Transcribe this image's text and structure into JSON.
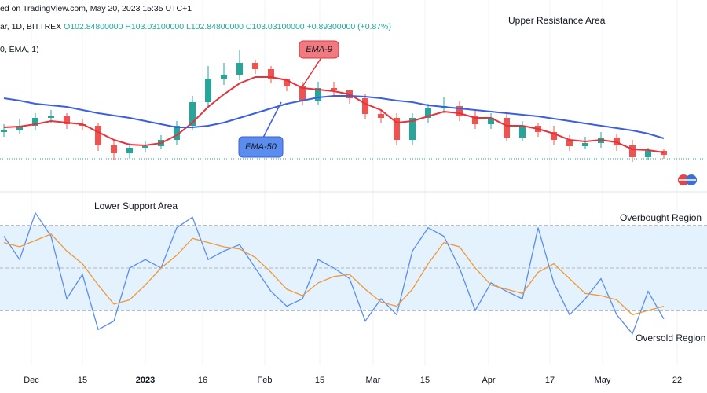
{
  "header": {
    "line1": "ed on TradingView.com, May 20, 2023 15:35 UTC+1",
    "line2_prefix": "ar, 1D, BITTREX ",
    "line2_values": "O102.84800000 H103.03100000 L102.84800000 C103.03100000 +0.89300000 (+0.87%)",
    "line3": "0, EMA, 1)"
  },
  "chart_data": [
    {
      "type": "candlestick",
      "annotations": {
        "upper": "Upper Resistance Area",
        "ema9": "EMA-9",
        "ema50": "EMA-50"
      },
      "ylim": [
        0,
        100
      ],
      "open": [
        26,
        27.5,
        30,
        35,
        36,
        31,
        30,
        17.5,
        12.5,
        16,
        17,
        21,
        30,
        45,
        60,
        62.5,
        70,
        66,
        60,
        55,
        46,
        54,
        52.5,
        47.5,
        37.5,
        35,
        21,
        35,
        41,
        42.5,
        36,
        31,
        35,
        22.5,
        30,
        26,
        21,
        17,
        19,
        22.5,
        17.5,
        10,
        14
      ],
      "high": [
        31,
        34,
        38,
        40,
        38,
        34,
        32,
        21,
        19,
        20,
        24,
        33,
        49,
        68,
        70,
        78,
        72,
        68,
        60,
        58,
        58,
        58,
        52,
        50,
        40,
        38,
        38,
        44,
        48,
        46,
        40,
        38,
        38,
        33,
        32,
        30,
        24,
        23,
        26,
        25,
        21,
        16,
        15
      ],
      "low": [
        23,
        25,
        27,
        32,
        28,
        27,
        14,
        8,
        9,
        13,
        15,
        18,
        27,
        42,
        56,
        59,
        63,
        57,
        52,
        43,
        43,
        49,
        44,
        34,
        32,
        18,
        18,
        32,
        38,
        33,
        28,
        28,
        20,
        20,
        23,
        18,
        14,
        15,
        16,
        14,
        7,
        8,
        9
      ],
      "close": [
        27.5,
        30,
        35,
        36,
        31,
        30,
        17.5,
        12.5,
        16,
        17,
        21,
        30,
        45,
        60,
        62.5,
        70,
        66,
        60,
        55,
        46,
        54,
        52.5,
        47.5,
        37.5,
        35,
        21,
        35,
        41,
        42.5,
        36,
        31,
        35,
        22.5,
        30,
        26,
        21,
        17,
        19,
        22.5,
        17.5,
        10,
        14,
        11.5
      ],
      "up_color": "#26a69a",
      "down_color": "#ef5350",
      "series": [
        {
          "name": "EMA-9",
          "color": "#e5323b",
          "values": [
            29,
            29.5,
            31,
            33,
            32,
            31,
            26,
            21,
            18,
            17.5,
            19,
            24,
            32,
            42,
            50,
            57,
            61,
            61,
            59,
            54,
            53,
            52,
            50,
            44,
            40,
            32,
            33,
            36,
            39,
            38,
            35,
            35,
            30,
            30,
            28,
            25,
            21,
            20,
            21,
            19.5,
            15,
            14.5,
            13
          ]
        },
        {
          "name": "EMA-50",
          "color": "#3c5ee0",
          "values": [
            47.5,
            46,
            44,
            43,
            42,
            40,
            38,
            36.5,
            35,
            33,
            31,
            29,
            29,
            30,
            32,
            35,
            38,
            41,
            44,
            46,
            48,
            49,
            49,
            48.5,
            47.5,
            46,
            45,
            43,
            42,
            41,
            40,
            39,
            38,
            37,
            36,
            34.5,
            33,
            31.5,
            30,
            28.5,
            27,
            25,
            22
          ]
        }
      ]
    },
    {
      "type": "line",
      "annotations": {
        "lower": "Lower Support Area",
        "overbought": "Overbought Region",
        "oversold": "Oversold Region"
      },
      "ylim": [
        10,
        80
      ],
      "band": [
        30,
        70
      ],
      "midline": 50,
      "band_color": "#e3f2fd",
      "series": [
        {
          "color": "#5b8def",
          "values": [
            65,
            54,
            76,
            65,
            35.5,
            47,
            21,
            25,
            50,
            54,
            50,
            69,
            74,
            54,
            58,
            61,
            50,
            39,
            32,
            35.5,
            54,
            50,
            45,
            25,
            35.5,
            28,
            58,
            69,
            65,
            50,
            30,
            43,
            39,
            35.5,
            69,
            43,
            28,
            35.5,
            45,
            28,
            19,
            39,
            26
          ]
        },
        {
          "color": "#f0983a",
          "values": [
            62,
            60,
            63,
            66,
            58,
            52,
            42,
            33,
            35,
            42,
            50,
            56,
            64,
            62,
            60,
            59,
            55,
            48,
            40,
            37,
            43,
            46,
            47,
            40,
            34,
            32,
            40,
            52,
            62,
            60,
            50,
            42,
            40,
            38,
            48,
            52,
            45,
            38,
            37,
            35,
            28,
            30,
            32
          ]
        }
      ],
      "x_labels": [
        "Dec",
        "15",
        "2023",
        "16",
        "Feb",
        "15",
        "Mar",
        "15",
        "Apr",
        "17",
        "May",
        "22"
      ]
    }
  ]
}
